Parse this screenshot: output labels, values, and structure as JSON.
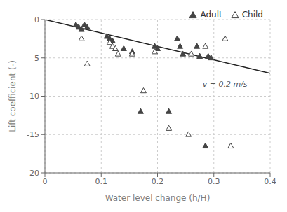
{
  "chart_data": {
    "type": "scatter",
    "xlabel": "Water level change (h/H)",
    "ylabel": "Lift coefficient (-)",
    "xlim": [
      0,
      0.4
    ],
    "ylim": [
      -20,
      0
    ],
    "xticks": [
      0,
      0.1,
      0.2,
      0.3,
      0.4
    ],
    "yticks": [
      0,
      -5,
      -10,
      -15,
      -20
    ],
    "grid": true,
    "legend": "upper right",
    "annotations": [
      {
        "text": "v = 0.2 m/s",
        "x": 0.28,
        "y": -8.5
      }
    ],
    "series": [
      {
        "type": "line",
        "color": "#222222",
        "x": [
          0.0,
          0.4
        ],
        "values": [
          0.0,
          -7.0
        ]
      },
      {
        "name": "Adult",
        "type": "scatter",
        "marker": "triangle",
        "color": "#444444",
        "x": [
          0.055,
          0.06,
          0.065,
          0.07,
          0.075,
          0.11,
          0.115,
          0.12,
          0.14,
          0.155,
          0.17,
          0.195,
          0.2,
          0.22,
          0.235,
          0.24,
          0.245,
          0.27,
          0.275,
          0.285,
          0.29,
          0.295
        ],
        "values": [
          -0.7,
          -1.0,
          -1.3,
          -0.7,
          -1.0,
          -2.2,
          -2.5,
          -2.8,
          -3.8,
          -4.2,
          -12.0,
          -3.5,
          -3.8,
          -12.0,
          -2.5,
          -3.5,
          -4.5,
          -3.5,
          -4.8,
          -16.5,
          -4.8,
          -5.0
        ]
      },
      {
        "name": "Child",
        "type": "scatter",
        "marker": "open_triangle",
        "color": "#444444",
        "x": [
          0.065,
          0.075,
          0.115,
          0.12,
          0.125,
          0.13,
          0.155,
          0.175,
          0.195,
          0.22,
          0.255,
          0.26,
          0.285,
          0.32,
          0.33
        ],
        "values": [
          -2.5,
          -5.8,
          -3.0,
          -3.5,
          -3.8,
          -4.5,
          -4.5,
          -9.3,
          -4.2,
          -14.2,
          -15.0,
          -4.5,
          -3.5,
          -2.5,
          -16.5
        ]
      }
    ]
  }
}
